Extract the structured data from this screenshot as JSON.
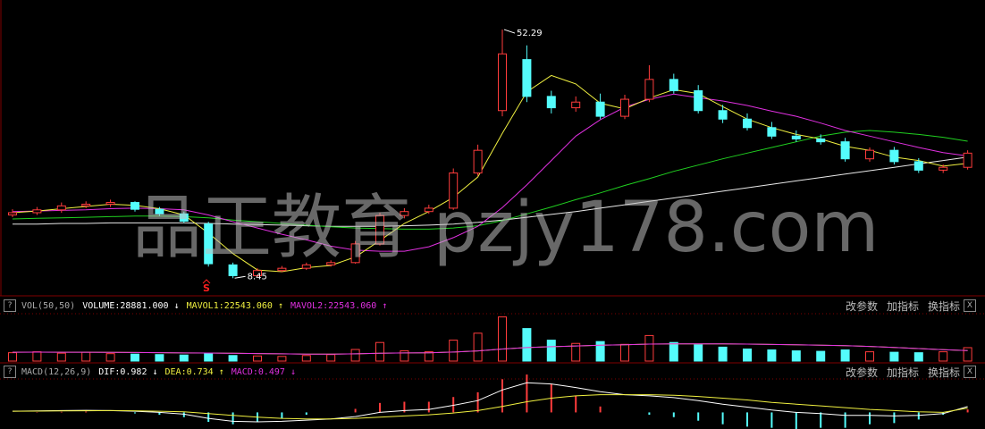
{
  "chart_data": [
    {
      "type": "candlestick",
      "open": [
        19.6,
        20.0,
        20.5,
        21.2,
        21.5,
        21.8,
        20.6,
        19.8,
        18.0,
        10.8,
        8.9,
        9.8,
        10.2,
        10.8,
        11.2,
        14.5,
        19.5,
        20.2,
        20.8,
        27.0,
        38.0,
        47.0,
        40.5,
        38.5,
        39.5,
        37.0,
        40.0,
        43.5,
        41.5,
        38.0,
        36.5,
        35.0,
        33.5,
        33.0,
        32.5,
        29.5,
        31.0,
        29.0,
        27.5,
        28.0
      ],
      "high": [
        20.6,
        21.0,
        21.8,
        22.0,
        22.3,
        22.0,
        21.0,
        20.2,
        18.4,
        11.2,
        10.2,
        10.6,
        11.2,
        11.6,
        15.0,
        20.0,
        20.8,
        21.4,
        27.8,
        32.0,
        52.29,
        49.5,
        41.5,
        40.5,
        41.0,
        40.8,
        46.0,
        44.5,
        42.5,
        39.0,
        37.5,
        36.0,
        34.5,
        33.8,
        33.2,
        31.5,
        31.6,
        29.6,
        28.5,
        31.0
      ],
      "low": [
        19.2,
        19.6,
        20.0,
        20.8,
        21.0,
        20.2,
        19.4,
        18.2,
        10.5,
        8.45,
        8.7,
        9.5,
        9.9,
        10.5,
        11.0,
        14.2,
        19.0,
        19.8,
        20.5,
        26.5,
        37.0,
        39.5,
        37.5,
        37.8,
        36.5,
        36.5,
        39.5,
        41.0,
        37.5,
        35.8,
        34.5,
        33.0,
        32.5,
        32.0,
        29.0,
        29.0,
        28.5,
        27.0,
        27.0,
        27.6
      ],
      "close": [
        20.0,
        20.5,
        21.2,
        21.5,
        21.8,
        20.6,
        19.8,
        18.5,
        11.0,
        8.9,
        9.8,
        10.2,
        10.8,
        11.2,
        14.5,
        19.5,
        20.2,
        20.8,
        27.0,
        31.0,
        48.0,
        40.5,
        38.5,
        39.5,
        37.0,
        40.0,
        43.5,
        41.5,
        38.0,
        36.5,
        35.0,
        33.5,
        33.0,
        32.5,
        29.5,
        31.0,
        29.0,
        27.5,
        28.0,
        30.5
      ],
      "high_label": "52.29",
      "low_label": "8.45",
      "signal": "S",
      "signal_color": "#ff2020",
      "ylim": [
        5.5,
        57.5
      ],
      "up_color": "#ff3c3c",
      "down_color": "#54fcfc",
      "lines": [
        {
          "color": "#e8e8e8",
          "values": [
            18.0,
            18.0,
            18.1,
            18.1,
            18.2,
            18.2,
            18.2,
            18.2,
            18.1,
            18.0,
            17.9,
            17.8,
            17.7,
            17.6,
            17.6,
            17.6,
            17.7,
            17.8,
            18.0,
            18.3,
            18.7,
            19.2,
            19.7,
            20.2,
            20.8,
            21.4,
            22.0,
            22.6,
            23.2,
            23.8,
            24.4,
            25.0,
            25.6,
            26.2,
            26.8,
            27.4,
            28.0,
            28.6,
            29.2,
            29.8
          ]
        },
        {
          "color": "#20d020",
          "values": [
            18.9,
            19.0,
            19.1,
            19.2,
            19.3,
            19.4,
            19.4,
            19.3,
            19.1,
            18.7,
            18.4,
            18.1,
            17.8,
            17.5,
            17.3,
            17.2,
            17.1,
            17.1,
            17.3,
            17.7,
            18.6,
            19.8,
            21.0,
            22.3,
            23.5,
            24.8,
            26.0,
            27.3,
            28.4,
            29.5,
            30.5,
            31.5,
            32.5,
            33.5,
            34.2,
            34.5,
            34.2,
            33.8,
            33.3,
            32.6
          ]
        },
        {
          "color": "#e030e0",
          "values": [
            20.2,
            20.3,
            20.4,
            20.5,
            20.7,
            20.8,
            20.7,
            20.5,
            19.6,
            18.4,
            17.3,
            16.2,
            15.2,
            14.1,
            13.4,
            13.2,
            13.2,
            14.0,
            15.6,
            17.6,
            20.9,
            24.9,
            29.2,
            33.5,
            36.4,
            38.6,
            40.0,
            40.9,
            40.3,
            39.7,
            38.9,
            37.9,
            37.0,
            35.8,
            34.5,
            33.5,
            32.5,
            31.5,
            30.6,
            30.0
          ]
        },
        {
          "color": "#f0f040",
          "values": [
            20.0,
            20.3,
            20.7,
            21.1,
            21.5,
            21.3,
            20.7,
            19.6,
            16.4,
            12.8,
            9.9,
            9.6,
            10.3,
            10.7,
            12.2,
            15.1,
            18.1,
            20.2,
            22.7,
            26.3,
            34.0,
            41.3,
            44.2,
            42.7,
            39.3,
            38.3,
            40.2,
            41.7,
            41.0,
            38.7,
            36.5,
            35.0,
            33.8,
            33.0,
            31.7,
            31.0,
            29.8,
            29.2,
            28.2,
            28.7
          ]
        }
      ]
    },
    {
      "type": "volume",
      "title": "VOL(50,50)",
      "readouts": [
        {
          "text": "VOLUME:28881.000 ↓",
          "color": "#ffffff"
        },
        {
          "text": "MAVOL1:22543.060 ↑",
          "color": "#f0f040"
        },
        {
          "text": "MAVOL2:22543.060 ↑",
          "color": "#e030e0"
        }
      ],
      "values": [
        18000,
        20000,
        17000,
        19000,
        16000,
        15000,
        14000,
        13000,
        17000,
        12000,
        11000,
        10000,
        12000,
        14000,
        25000,
        40000,
        22000,
        20000,
        45000,
        60000,
        95000,
        70000,
        45000,
        38000,
        42000,
        36000,
        55000,
        40000,
        35000,
        30000,
        26000,
        24000,
        22000,
        21000,
        24000,
        20000,
        19000,
        18000,
        20000,
        28881
      ],
      "ylim": [
        0,
        100000
      ],
      "lines": [
        {
          "color": "#f0f040",
          "values": [
            19000,
            19200,
            19100,
            19000,
            18800,
            18500,
            18000,
            17500,
            17300,
            16800,
            16200,
            15500,
            15000,
            14800,
            15500,
            17000,
            17500,
            17800,
            19500,
            22000,
            26000,
            29000,
            31000,
            32500,
            34000,
            35000,
            36500,
            37000,
            37200,
            37000,
            36500,
            35800,
            35000,
            34000,
            33000,
            31500,
            29500,
            27000,
            24500,
            22543.06
          ]
        },
        {
          "color": "#e030e0",
          "values": [
            19000,
            19200,
            19100,
            19000,
            18800,
            18500,
            18000,
            17500,
            17300,
            16800,
            16200,
            15500,
            15000,
            14800,
            15500,
            17000,
            17500,
            17800,
            19500,
            22000,
            26000,
            29000,
            31000,
            32500,
            34000,
            35000,
            36500,
            37000,
            37200,
            37000,
            36500,
            35800,
            35000,
            34000,
            33000,
            31500,
            29500,
            27000,
            24500,
            22543.06
          ]
        }
      ]
    },
    {
      "type": "macd",
      "title": "MACD(12,26,9)",
      "readouts": [
        {
          "text": "DIF:0.982 ↓",
          "color": "#ffffff"
        },
        {
          "text": "DEA:0.734 ↑",
          "color": "#f0f040"
        },
        {
          "text": "MACD:0.497 ↓",
          "color": "#e030e0"
        }
      ],
      "dif": [
        0.2,
        0.25,
        0.3,
        0.35,
        0.3,
        0.2,
        0.0,
        -0.3,
        -1.0,
        -1.5,
        -1.6,
        -1.5,
        -1.3,
        -1.1,
        -0.7,
        0.0,
        0.3,
        0.5,
        1.2,
        2.0,
        3.8,
        5.0,
        4.8,
        4.2,
        3.5,
        3.0,
        2.8,
        2.5,
        2.0,
        1.4,
        0.9,
        0.4,
        0.0,
        -0.2,
        -0.5,
        -0.5,
        -0.6,
        -0.5,
        -0.2,
        0.982
      ],
      "dea": [
        0.2,
        0.22,
        0.25,
        0.28,
        0.3,
        0.28,
        0.2,
        0.1,
        -0.2,
        -0.5,
        -0.8,
        -1.0,
        -1.1,
        -1.1,
        -1.0,
        -0.8,
        -0.6,
        -0.4,
        -0.1,
        0.3,
        1.0,
        1.8,
        2.4,
        2.8,
        3.0,
        3.0,
        3.0,
        2.9,
        2.7,
        2.4,
        2.1,
        1.7,
        1.4,
        1.1,
        0.8,
        0.5,
        0.3,
        0.1,
        0.0,
        0.734
      ],
      "macd": [
        0,
        0.06,
        0.1,
        0.14,
        0,
        -0.16,
        -0.4,
        -0.8,
        -1.6,
        -2.0,
        -1.6,
        -1.0,
        -0.4,
        0,
        0.6,
        1.6,
        1.8,
        1.8,
        2.6,
        3.4,
        5.6,
        6.4,
        4.8,
        2.8,
        1.0,
        0,
        -0.4,
        -0.8,
        -1.4,
        -2.0,
        -2.4,
        -2.6,
        -2.8,
        -2.6,
        -2.6,
        -2.0,
        -1.8,
        -1.2,
        -0.4,
        0.497
      ],
      "ylim": [
        -2.5,
        5.5
      ],
      "dif_color": "#ffffff",
      "dea_color": "#f0f040",
      "up_color": "#ff3c3c",
      "down_color": "#54fcfc"
    }
  ],
  "panel_buttons": [
    "改参数",
    "加指标",
    "换指标"
  ],
  "help_button": "?",
  "close_button": "X",
  "watermark": "品正教育 pzjy178.com"
}
